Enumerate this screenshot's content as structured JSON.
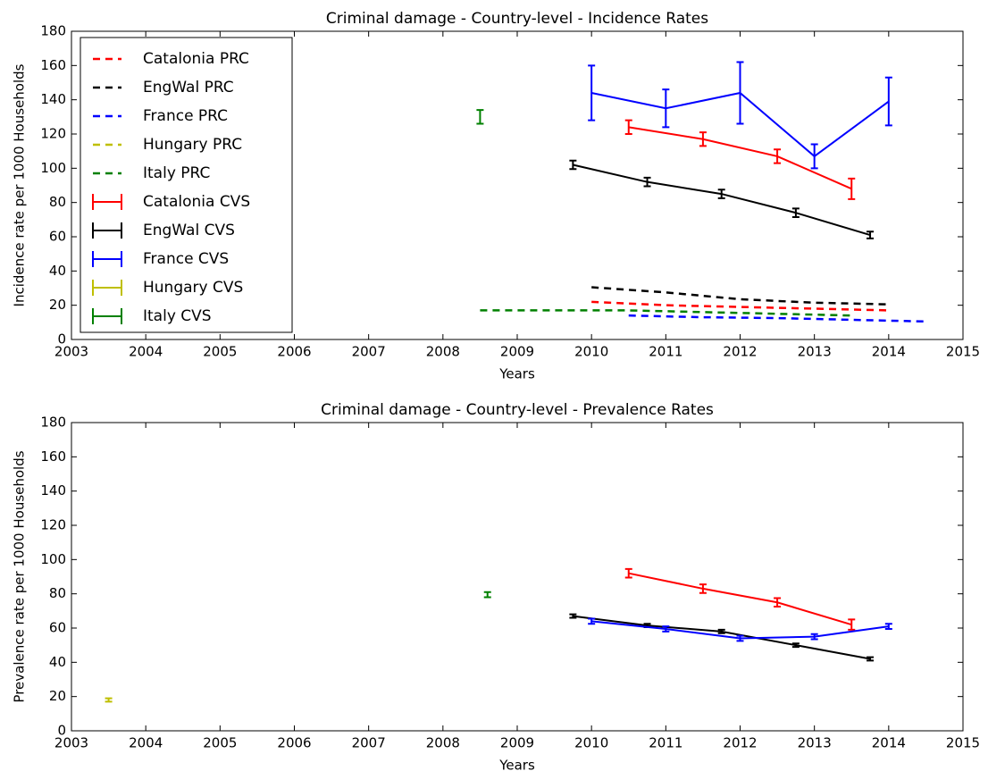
{
  "chart_data": [
    {
      "type": "line",
      "title": "Criminal damage - Country-level - Incidence Rates",
      "x_label": "Years",
      "y_label": "Incidence rate per 1000 Households",
      "xlim": [
        2003,
        2015
      ],
      "ylim": [
        0,
        180
      ],
      "xticks": [
        2003,
        2004,
        2005,
        2006,
        2007,
        2008,
        2009,
        2010,
        2011,
        2012,
        2013,
        2014,
        2015
      ],
      "yticks": [
        0,
        20,
        40,
        60,
        80,
        100,
        120,
        140,
        160,
        180
      ],
      "legend": "upper left",
      "series": [
        {
          "name": "Catalonia PRC",
          "color": "#ff0000",
          "linestyle": "dashed",
          "x": [
            2010,
            2011,
            2012,
            2013,
            2014
          ],
          "values": [
            22,
            20,
            19,
            18,
            17
          ]
        },
        {
          "name": "EngWal PRC",
          "color": "#000000",
          "linestyle": "dashed",
          "x": [
            2010,
            2011,
            2012,
            2013,
            2014
          ],
          "values": [
            30.5,
            27.5,
            23.5,
            21.5,
            20.5
          ]
        },
        {
          "name": "France PRC",
          "color": "#0000ff",
          "linestyle": "dashed",
          "x": [
            2010.5,
            2011.5,
            2012.5,
            2013.5,
            2014.5
          ],
          "values": [
            14,
            13,
            12.5,
            11.5,
            10.5
          ]
        },
        {
          "name": "Hungary PRC",
          "color": "#bfbf00",
          "linestyle": "dashed",
          "x": [],
          "values": []
        },
        {
          "name": "Italy PRC",
          "color": "#008000",
          "linestyle": "dashed",
          "x": [
            2008.5,
            2009.5,
            2010.5,
            2011.5,
            2012.5,
            2013.5
          ],
          "values": [
            17,
            17,
            17,
            16,
            15,
            14
          ]
        },
        {
          "name": "Catalonia CVS",
          "color": "#ff0000",
          "linestyle": "solid",
          "x": [
            2010.5,
            2011.5,
            2012.5,
            2013.5
          ],
          "values": [
            124,
            117,
            107,
            88
          ],
          "errors": [
            4,
            4,
            4,
            6
          ]
        },
        {
          "name": "EngWal CVS",
          "color": "#000000",
          "linestyle": "solid",
          "x": [
            2009.75,
            2010.75,
            2011.75,
            2012.75,
            2013.75
          ],
          "values": [
            102,
            92,
            85,
            74,
            61
          ],
          "errors": [
            2.5,
            2.5,
            2.5,
            2.5,
            2
          ]
        },
        {
          "name": "France CVS",
          "color": "#0000ff",
          "linestyle": "solid",
          "x": [
            2010,
            2011,
            2012,
            2013,
            2014
          ],
          "values": [
            144,
            135,
            144,
            107,
            139
          ],
          "errors": [
            16,
            11,
            18,
            7,
            14
          ]
        },
        {
          "name": "Hungary CVS",
          "color": "#bfbf00",
          "linestyle": "solid",
          "x": [],
          "values": [],
          "errors": []
        },
        {
          "name": "Italy CVS",
          "color": "#008000",
          "linestyle": "solid",
          "x": [
            2008.5
          ],
          "values": [
            130
          ],
          "errors": [
            4
          ]
        }
      ]
    },
    {
      "type": "line",
      "title": "Criminal damage - Country-level - Prevalence Rates",
      "x_label": "Years",
      "y_label": "Prevalence rate per 1000 Households",
      "xlim": [
        2003,
        2015
      ],
      "ylim": [
        0,
        180
      ],
      "xticks": [
        2003,
        2004,
        2005,
        2006,
        2007,
        2008,
        2009,
        2010,
        2011,
        2012,
        2013,
        2014,
        2015
      ],
      "yticks": [
        0,
        20,
        40,
        60,
        80,
        100,
        120,
        140,
        160,
        180
      ],
      "series": [
        {
          "color": "#ff0000",
          "linestyle": "solid",
          "x": [
            2010.5,
            2011.5,
            2012.5,
            2013.5
          ],
          "values": [
            92,
            83,
            75,
            62
          ],
          "errors": [
            2.5,
            2.5,
            2.5,
            3
          ]
        },
        {
          "color": "#000000",
          "linestyle": "solid",
          "x": [
            2009.75,
            2010.75,
            2011.75,
            2012.75,
            2013.75
          ],
          "values": [
            67,
            61.5,
            58,
            50,
            42
          ],
          "errors": [
            1,
            1,
            1,
            1,
            1
          ]
        },
        {
          "color": "#0000ff",
          "linestyle": "solid",
          "x": [
            2010,
            2011,
            2012,
            2013,
            2014
          ],
          "values": [
            64,
            59.5,
            54,
            55,
            61
          ],
          "errors": [
            1.5,
            1.5,
            1.5,
            1.5,
            1.5
          ]
        },
        {
          "color": "#bfbf00",
          "linestyle": "solid",
          "x": [
            2003.5
          ],
          "values": [
            18
          ],
          "errors": [
            1
          ]
        },
        {
          "color": "#008000",
          "linestyle": "solid",
          "x": [
            2008.6
          ],
          "values": [
            79.5
          ],
          "errors": [
            1.5
          ]
        }
      ]
    }
  ]
}
